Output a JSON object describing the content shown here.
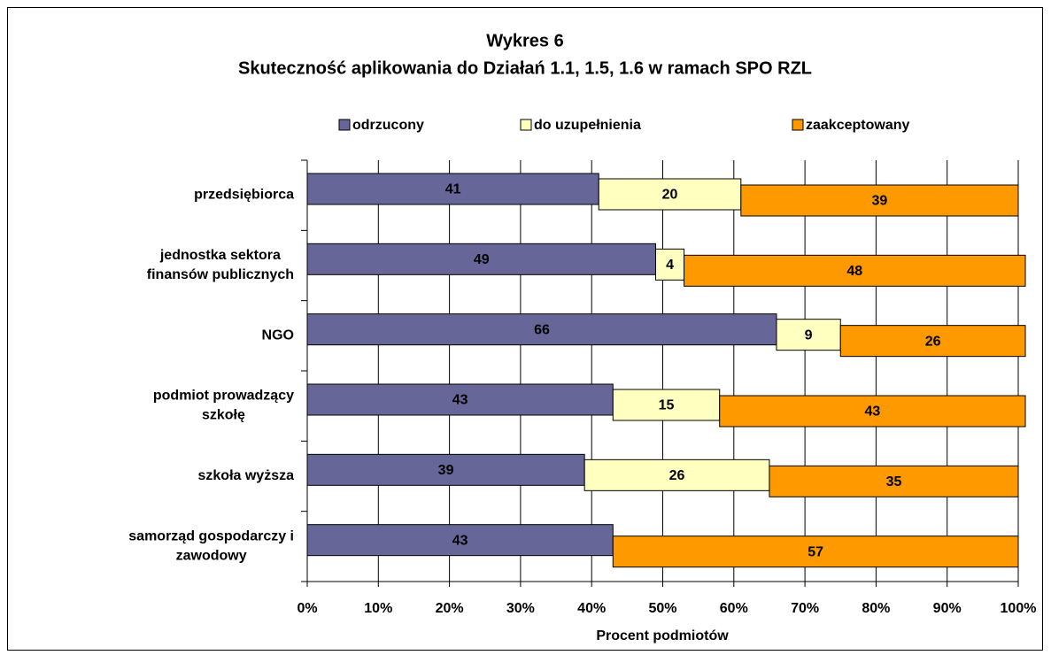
{
  "chart_data": {
    "type": "bar",
    "orientation": "horizontal",
    "stacked": true,
    "title": "Wykres 6",
    "subtitle": "Skuteczność aplikowania do Działań 1.1, 1.5, 1.6 w ramach SPO RZL",
    "xlabel": "Procent podmiotów",
    "categories": [
      "przedsiębiorca",
      "jednostka sektora\nfinansów publicznych",
      "NGO",
      "podmiot prowadzący\nszkołę",
      "szkoła wyższa",
      "samorząd gospodarczy i\nzawodowy"
    ],
    "series": [
      {
        "name": "odrzucony",
        "color": "#666699",
        "values": [
          41,
          49,
          66,
          43,
          39,
          43
        ]
      },
      {
        "name": "do uzupełnienia",
        "color": "#ffffc0",
        "values": [
          20,
          4,
          9,
          15,
          26,
          null
        ]
      },
      {
        "name": "zaakceptowany",
        "color": "#ff9900",
        "values": [
          39,
          48,
          26,
          43,
          35,
          57
        ]
      }
    ],
    "xlim": [
      0,
      100
    ],
    "xticks": [
      {
        "value": 0,
        "label": "0%"
      },
      {
        "value": 10,
        "label": "10%"
      },
      {
        "value": 20,
        "label": "20%"
      },
      {
        "value": 30,
        "label": "30%"
      },
      {
        "value": 40,
        "label": "40%"
      },
      {
        "value": 50,
        "label": "50%"
      },
      {
        "value": 60,
        "label": "60%"
      },
      {
        "value": 70,
        "label": "70%"
      },
      {
        "value": 80,
        "label": "80%"
      },
      {
        "value": 90,
        "label": "90%"
      },
      {
        "value": 100,
        "label": "100%"
      }
    ],
    "grid": true,
    "legend": "top"
  }
}
